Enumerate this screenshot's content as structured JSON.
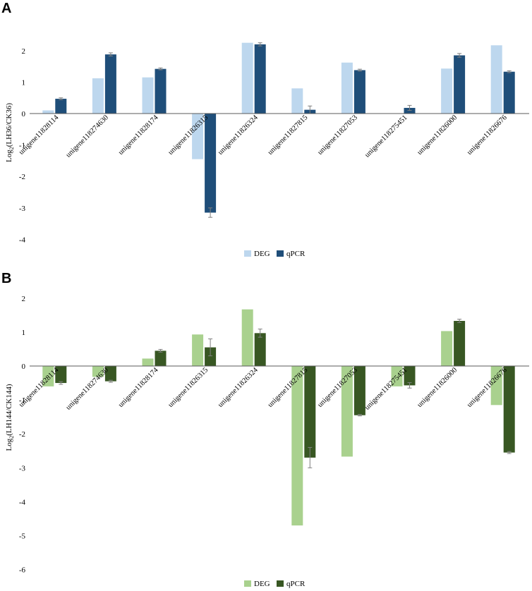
{
  "chart_data": [
    {
      "panel": "A",
      "type": "bar",
      "ylabel_main": "Log",
      "ylabel_sub": "2",
      "ylabel_rest": "(LH36/CK36)",
      "xlabel": "",
      "ylim": [
        -4,
        3
      ],
      "yticks": [
        -4,
        -3,
        -2,
        -1,
        0,
        1,
        2
      ],
      "categories": [
        "unigene11828114",
        "unigene118274630",
        "unigene11828174",
        "unigene11826315",
        "unigene11826324",
        "unigene11827815",
        "unigene11827053",
        "unigene118275451",
        "unigene11826000",
        "unigene11826676"
      ],
      "series": [
        {
          "name": "DEG",
          "color": "#bdd7ee",
          "values": [
            0.1,
            1.12,
            1.15,
            -1.45,
            2.25,
            0.8,
            1.62,
            0.0,
            1.43,
            2.17
          ],
          "errors": [
            0,
            0,
            0,
            0,
            0,
            0,
            0,
            0,
            0,
            0
          ]
        },
        {
          "name": "qPCR",
          "color": "#1f4e79",
          "values": [
            0.47,
            1.88,
            1.42,
            -3.15,
            2.2,
            0.12,
            1.38,
            0.18,
            1.85,
            1.33
          ],
          "errors": [
            0.03,
            0.05,
            0.03,
            0.15,
            0.05,
            0.12,
            0.03,
            0.08,
            0.06,
            0.03
          ]
        }
      ]
    },
    {
      "panel": "B",
      "type": "bar",
      "ylabel_main": "Log",
      "ylabel_sub": "2",
      "ylabel_rest": "(LH144/CK144)",
      "xlabel": "",
      "ylim": [
        -6,
        2
      ],
      "yticks": [
        -6,
        -5,
        -4,
        -3,
        -2,
        -1,
        0,
        1,
        2
      ],
      "categories": [
        "unigene11828114",
        "unigene118274630",
        "unigene11828174",
        "unigene11826315",
        "unigene11826324",
        "unigene11827815",
        "unigene11827053",
        "unigene118275451",
        "unigene11826000",
        "unigene11826676"
      ],
      "series": [
        {
          "name": "DEG",
          "color": "#a9d18e",
          "values": [
            -0.6,
            -0.32,
            0.22,
            0.93,
            1.67,
            -4.7,
            -2.67,
            -0.6,
            1.03,
            -1.15
          ],
          "errors": [
            0,
            0,
            0,
            0,
            0,
            0,
            0,
            0,
            0,
            0
          ]
        },
        {
          "name": "qPCR",
          "color": "#385723",
          "values": [
            -0.5,
            -0.45,
            0.45,
            0.55,
            0.97,
            -2.7,
            -1.45,
            -0.57,
            1.33,
            -2.55
          ],
          "errors": [
            0.04,
            0.03,
            0.04,
            0.25,
            0.12,
            0.3,
            0.02,
            0.08,
            0.05,
            0.03
          ]
        }
      ]
    }
  ]
}
